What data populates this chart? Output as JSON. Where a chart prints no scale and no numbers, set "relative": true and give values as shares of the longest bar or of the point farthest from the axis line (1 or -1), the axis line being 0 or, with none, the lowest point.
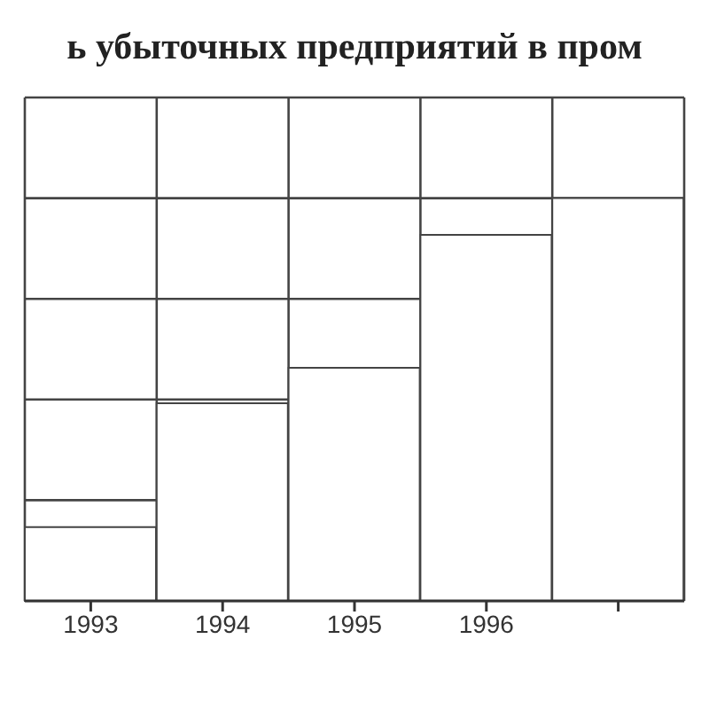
{
  "chart_data": {
    "type": "bar",
    "title": "ь убыточных предприятий в пром",
    "categories": [
      "1993",
      "1994",
      "1995",
      "1996",
      null
    ],
    "values": [
      0.183,
      0.491,
      0.579,
      0.909,
      1
    ],
    "color": "#ffffff",
    "relative": true,
    "grid": true
  }
}
